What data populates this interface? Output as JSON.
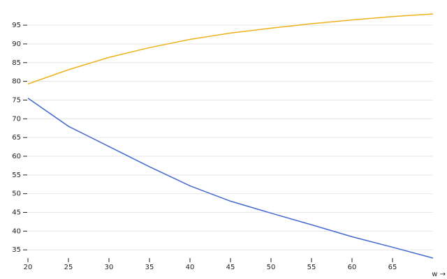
{
  "chart_data": {
    "type": "line",
    "x": [
      20,
      25,
      30,
      35,
      40,
      45,
      50,
      55,
      60,
      65,
      70
    ],
    "series": [
      {
        "color": "#4269d0",
        "values": [
          75.5,
          68.0,
          62.6,
          57.2,
          52.1,
          48.0,
          44.8,
          41.7,
          38.5,
          35.7,
          32.8
        ]
      },
      {
        "color": "#efb118",
        "values": [
          79.3,
          83.1,
          86.4,
          89.0,
          91.2,
          92.9,
          94.2,
          95.4,
          96.4,
          97.3,
          98.0
        ]
      }
    ],
    "xlim": [
      20,
      70
    ],
    "xticks": [
      20,
      25,
      30,
      35,
      40,
      45,
      50,
      55,
      60,
      65
    ],
    "ylim": [
      32.8,
      98
    ],
    "yticks": [
      35,
      40,
      45,
      50,
      55,
      60,
      65,
      70,
      75,
      80,
      85,
      90,
      95
    ],
    "xlabel": "w →",
    "grid": true
  }
}
